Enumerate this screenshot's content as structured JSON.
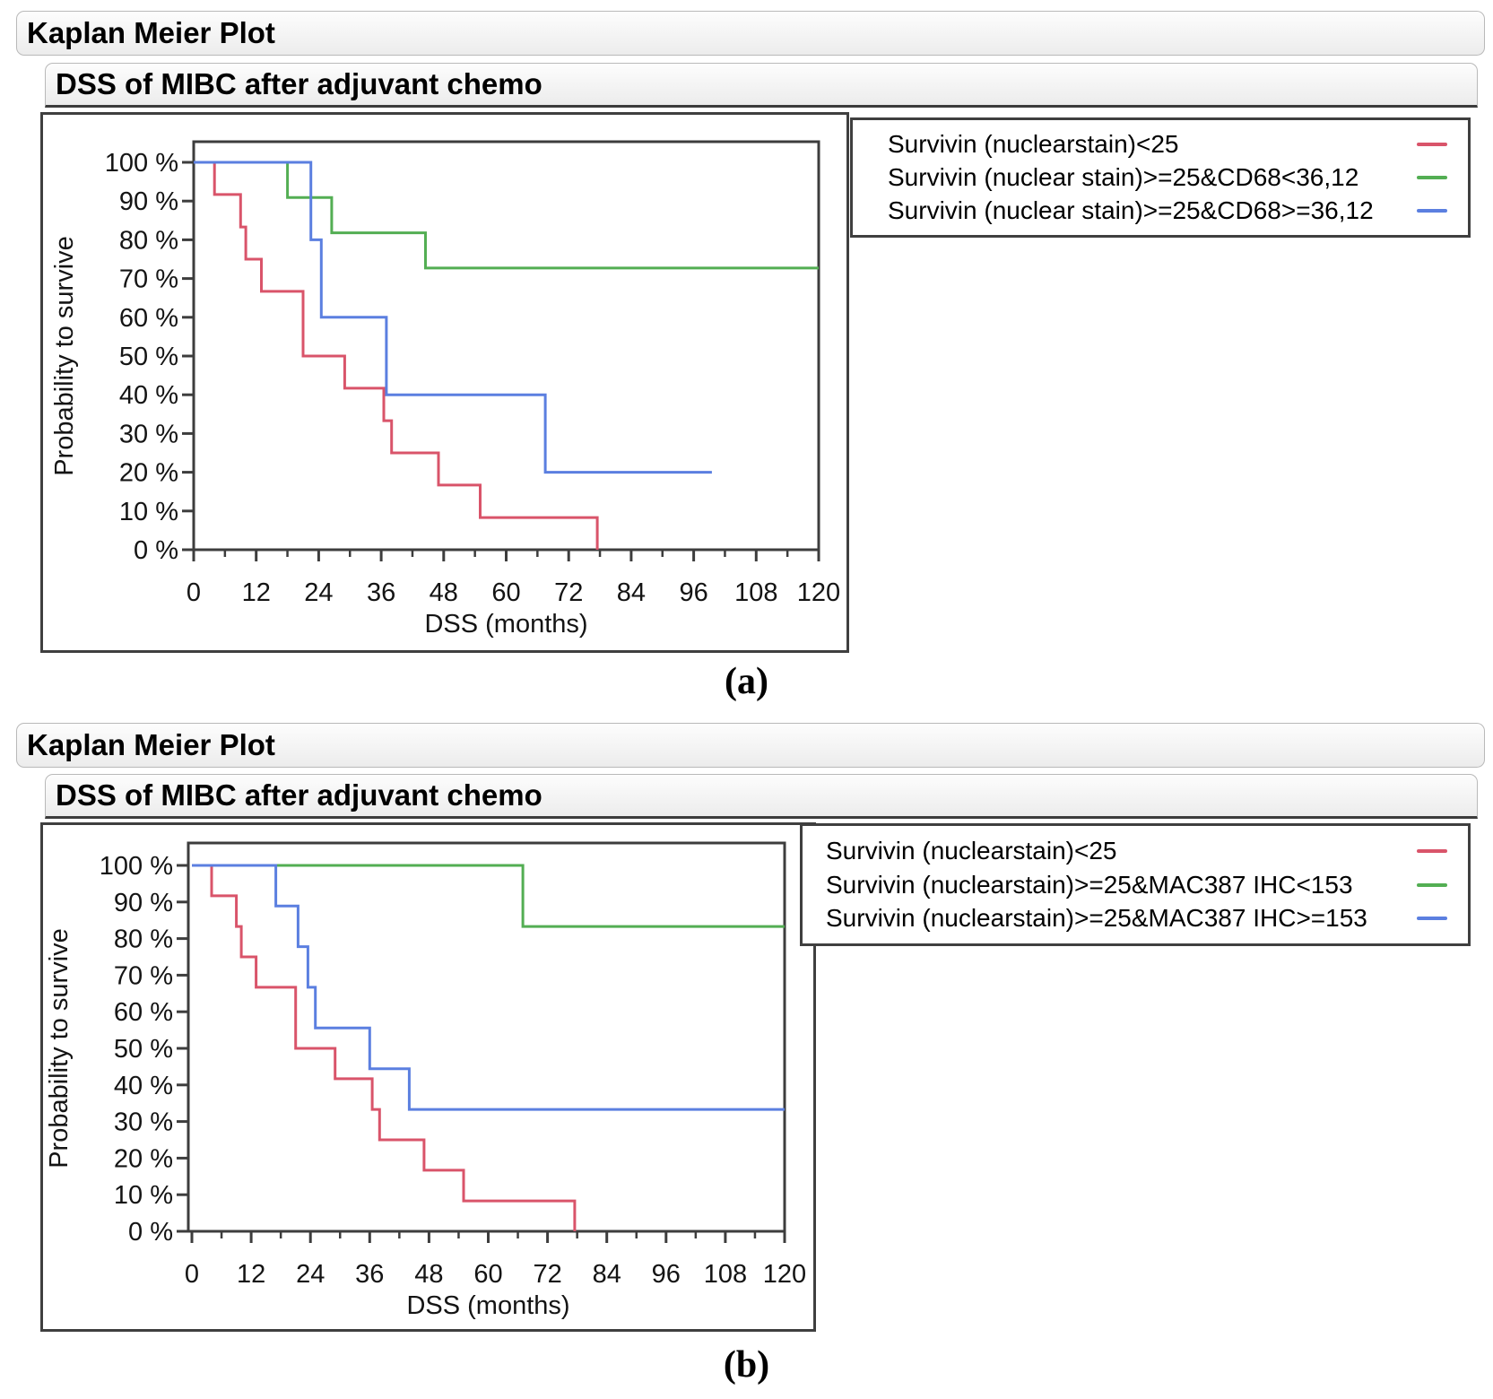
{
  "panels": [
    {
      "outline_title": "Kaplan Meier Plot",
      "plot_title": "DSS of MIBC after adjuvant chemo",
      "caption": "(a)"
    },
    {
      "outline_title": "Kaplan Meier Plot",
      "plot_title": "DSS of MIBC after adjuvant chemo",
      "caption": "(b)"
    }
  ],
  "colors": {
    "red_series": "#d9546a",
    "green_series": "#53ae53",
    "blue_series": "#5b7fe0",
    "axis_frame": "#3d3d3d"
  },
  "chart_data": [
    {
      "type": "line",
      "subtype": "kaplan-meier-step",
      "title": "DSS of MIBC after adjuvant chemo",
      "panel_label": "(a)",
      "xlabel": "DSS (months)",
      "ylabel": "Probability to survive",
      "xlim": [
        0,
        120
      ],
      "ylim": [
        0,
        100
      ],
      "xticks": [
        0,
        12,
        24,
        36,
        48,
        60,
        72,
        84,
        96,
        108,
        120
      ],
      "xtick_minor_step": 6,
      "ytick_step": 10,
      "ytick_suffix": " %",
      "grid": false,
      "legend_position": "right-outside",
      "series": [
        {
          "name": "Survivin (nuclearstain)<25",
          "color": "#d9546a",
          "points": [
            [
              0,
              100
            ],
            [
              4,
              100
            ],
            [
              4,
              91.7
            ],
            [
              9,
              91.7
            ],
            [
              9,
              83.3
            ],
            [
              10,
              83.3
            ],
            [
              10,
              75
            ],
            [
              13,
              75
            ],
            [
              13,
              66.7
            ],
            [
              21,
              66.7
            ],
            [
              21,
              50
            ],
            [
              29,
              50
            ],
            [
              29,
              41.7
            ],
            [
              36.5,
              41.7
            ],
            [
              36.5,
              33.3
            ],
            [
              38,
              33.3
            ],
            [
              38,
              25
            ],
            [
              47,
              25
            ],
            [
              47,
              16.7
            ],
            [
              55,
              16.7
            ],
            [
              55,
              8.3
            ],
            [
              77.5,
              8.3
            ],
            [
              77.5,
              0
            ]
          ]
        },
        {
          "name": "Survivin (nuclear stain)>=25&CD68<36,12",
          "color": "#53ae53",
          "points": [
            [
              0,
              100
            ],
            [
              18,
              100
            ],
            [
              18,
              90.9
            ],
            [
              26.5,
              90.9
            ],
            [
              26.5,
              81.8
            ],
            [
              44.5,
              81.8
            ],
            [
              44.5,
              72.7
            ],
            [
              120,
              72.7
            ]
          ]
        },
        {
          "name": "Survivin (nuclear stain)>=25&CD68>=36,12",
          "color": "#5b7fe0",
          "points": [
            [
              0,
              100
            ],
            [
              22.5,
              100
            ],
            [
              22.5,
              80
            ],
            [
              24.5,
              80
            ],
            [
              24.5,
              60
            ],
            [
              37,
              60
            ],
            [
              37,
              40
            ],
            [
              67.5,
              40
            ],
            [
              67.5,
              20
            ],
            [
              99.5,
              20
            ]
          ]
        }
      ]
    },
    {
      "type": "line",
      "subtype": "kaplan-meier-step",
      "title": "DSS of MIBC after adjuvant chemo",
      "panel_label": "(b)",
      "xlabel": "DSS (months)",
      "ylabel": "Probability to survive",
      "xlim": [
        0,
        120
      ],
      "ylim": [
        0,
        100
      ],
      "xticks": [
        0,
        12,
        24,
        36,
        48,
        60,
        72,
        84,
        96,
        108,
        120
      ],
      "xtick_minor_step": 6,
      "ytick_step": 10,
      "ytick_suffix": " %",
      "grid": false,
      "legend_position": "right-outside",
      "series": [
        {
          "name": "Survivin (nuclearstain)<25",
          "color": "#d9546a",
          "points": [
            [
              0,
              100
            ],
            [
              4,
              100
            ],
            [
              4,
              91.7
            ],
            [
              9,
              91.7
            ],
            [
              9,
              83.3
            ],
            [
              10,
              83.3
            ],
            [
              10,
              75
            ],
            [
              13,
              75
            ],
            [
              13,
              66.7
            ],
            [
              21,
              66.7
            ],
            [
              21,
              50
            ],
            [
              29,
              50
            ],
            [
              29,
              41.7
            ],
            [
              36.5,
              41.7
            ],
            [
              36.5,
              33.3
            ],
            [
              38,
              33.3
            ],
            [
              38,
              25
            ],
            [
              47,
              25
            ],
            [
              47,
              16.7
            ],
            [
              55,
              16.7
            ],
            [
              55,
              8.3
            ],
            [
              77.5,
              8.3
            ],
            [
              77.5,
              0
            ]
          ]
        },
        {
          "name": "Survivin (nuclearstain)>=25&MAC387 IHC<153",
          "color": "#53ae53",
          "points": [
            [
              0,
              100
            ],
            [
              67,
              100
            ],
            [
              67,
              83.3
            ],
            [
              120,
              83.3
            ]
          ]
        },
        {
          "name": "Survivin (nuclearstain)>=25&MAC387 IHC>=153",
          "color": "#5b7fe0",
          "points": [
            [
              0,
              100
            ],
            [
              17,
              100
            ],
            [
              17,
              88.9
            ],
            [
              21.5,
              88.9
            ],
            [
              21.5,
              77.8
            ],
            [
              23.5,
              77.8
            ],
            [
              23.5,
              66.7
            ],
            [
              25,
              66.7
            ],
            [
              25,
              55.6
            ],
            [
              36,
              55.6
            ],
            [
              36,
              44.4
            ],
            [
              44,
              44.4
            ],
            [
              44,
              33.3
            ],
            [
              120,
              33.3
            ]
          ]
        }
      ]
    }
  ]
}
